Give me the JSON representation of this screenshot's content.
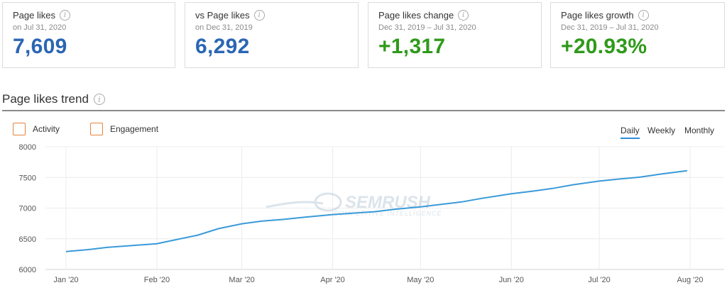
{
  "cards": [
    {
      "title": "Page likes",
      "sub": "on Jul 31, 2020",
      "value": "7,609",
      "color": "#2a66b4"
    },
    {
      "title": "vs Page likes",
      "sub": "on Dec 31, 2019",
      "value": "6,292",
      "color": "#2a66b4"
    },
    {
      "title": "Page likes change",
      "sub": "Dec 31, 2019 – Jul 31, 2020",
      "value": "+1,317",
      "color": "#2f9a1a"
    },
    {
      "title": "Page likes growth",
      "sub": "Dec 31, 2019 – Jul 31, 2020",
      "value": "+20.93%",
      "color": "#2f9a1a"
    }
  ],
  "info_icon_glyph": "i",
  "section": {
    "title": "Page likes trend"
  },
  "legend": [
    {
      "label": "Activity",
      "checked": false
    },
    {
      "label": "Engagement",
      "checked": false
    }
  ],
  "periods": [
    {
      "label": "Daily",
      "active": true
    },
    {
      "label": "Weekly",
      "active": false
    },
    {
      "label": "Monthly",
      "active": false
    }
  ],
  "watermark": {
    "brand": "SEMRUSH",
    "tagline": "COMPETITIVE INTELLIGENCE"
  },
  "colors": {
    "line": "#3a9ad9",
    "checkbox_border": "#e8823b",
    "accent_blue": "#2a66b4",
    "accent_green": "#2f9a1a"
  },
  "chart_data": {
    "type": "line",
    "title": "",
    "xlabel": "",
    "ylabel": "",
    "ylim": [
      6000,
      8000
    ],
    "y_ticks": [
      8000,
      7500,
      7000,
      6500,
      6000
    ],
    "x_ticks": [
      "Jan '20",
      "Feb '20",
      "Mar '20",
      "Apr '20",
      "May '20",
      "Jun '20",
      "Jul '20",
      "Aug '20"
    ],
    "series": [
      {
        "x": [
          "2020-01-01",
          "2020-01-08",
          "2020-01-15",
          "2020-01-22",
          "2020-02-01",
          "2020-02-08",
          "2020-02-15",
          "2020-02-22",
          "2020-03-01",
          "2020-03-08",
          "2020-03-15",
          "2020-03-22",
          "2020-04-01",
          "2020-04-08",
          "2020-04-15",
          "2020-04-22",
          "2020-05-01",
          "2020-05-08",
          "2020-05-15",
          "2020-05-22",
          "2020-06-01",
          "2020-06-08",
          "2020-06-15",
          "2020-06-22",
          "2020-07-01",
          "2020-07-08",
          "2020-07-15",
          "2020-07-22",
          "2020-07-31"
        ],
        "values": [
          6292,
          6320,
          6360,
          6385,
          6420,
          6490,
          6560,
          6665,
          6745,
          6790,
          6815,
          6850,
          6895,
          6918,
          6940,
          6980,
          7020,
          7060,
          7100,
          7160,
          7235,
          7275,
          7320,
          7380,
          7440,
          7475,
          7505,
          7555,
          7609
        ]
      }
    ],
    "grid": true
  }
}
